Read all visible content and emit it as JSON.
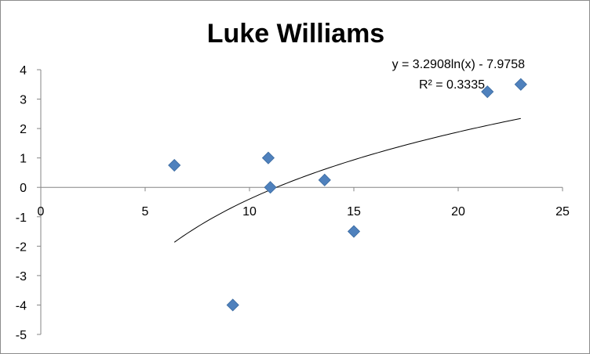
{
  "chart_data": {
    "type": "scatter",
    "title": "Luke Williams",
    "xlabel": "",
    "ylabel": "",
    "xlim": [
      0,
      25
    ],
    "ylim": [
      -5,
      4
    ],
    "x_ticks": [
      0,
      5,
      10,
      15,
      20,
      25
    ],
    "y_ticks": [
      4,
      3,
      2,
      1,
      0,
      -1,
      -2,
      -3,
      -4,
      -5
    ],
    "grid": false,
    "legend": "none",
    "marker": "diamond",
    "marker_color": "#4f81bd",
    "series": [
      {
        "x": [
          6.4,
          9.2,
          10.9,
          11.0,
          13.6,
          15.0,
          21.4,
          23.0
        ],
        "y": [
          0.75,
          -4.0,
          1.0,
          0.0,
          0.25,
          -1.5,
          3.25,
          3.5
        ]
      }
    ],
    "trendline": {
      "type": "logarithmic",
      "a": 3.2908,
      "b": -7.9758,
      "x_range": [
        6.4,
        23.0
      ],
      "color": "#000000",
      "equation_label": "y = 3.2908ln(x) - 7.9758",
      "r2_label": "R² = 0.3335"
    }
  }
}
